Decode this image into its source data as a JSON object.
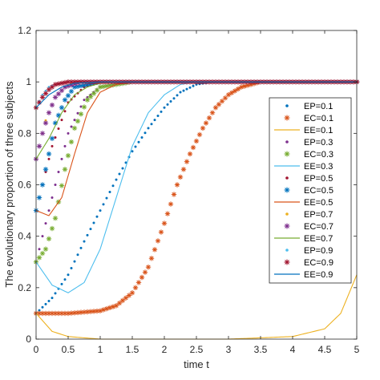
{
  "chart_data": {
    "type": "scatter",
    "xlabel": "time t",
    "ylabel": "The evolutionary proportion of three subjects",
    "xlim": [
      0,
      5
    ],
    "ylim": [
      0,
      1.2
    ],
    "xticks": [
      "0",
      "0.5",
      "1",
      "1.5",
      "2",
      "2.5",
      "3",
      "3.5",
      "4",
      "4.5",
      "5"
    ],
    "yticks": [
      "0",
      "0.2",
      "0.4",
      "0.6",
      "0.8",
      "1",
      "1.2"
    ],
    "grid": false,
    "legend_position": "right-middle",
    "series": [
      {
        "name": "EP=0.1",
        "style": "dot",
        "color": "#0072BD",
        "x": [
          0,
          0.25,
          0.5,
          0.75,
          1,
          1.25,
          1.5,
          1.75,
          2,
          2.25,
          2.5,
          2.75,
          3,
          5
        ],
        "y": [
          0.1,
          0.16,
          0.25,
          0.38,
          0.5,
          0.62,
          0.73,
          0.82,
          0.9,
          0.96,
          0.99,
          1,
          1,
          1
        ]
      },
      {
        "name": "EC=0.1",
        "style": "star",
        "color": "#D95319",
        "x": [
          0,
          0.5,
          1,
          1.25,
          1.5,
          1.75,
          2,
          2.2,
          2.4,
          2.6,
          2.8,
          3,
          3.2,
          3.5,
          4,
          5
        ],
        "y": [
          0.1,
          0.1,
          0.11,
          0.13,
          0.18,
          0.28,
          0.45,
          0.6,
          0.72,
          0.82,
          0.9,
          0.95,
          0.98,
          1,
          1,
          1
        ]
      },
      {
        "name": "EE=0.1",
        "style": "line",
        "color": "#EDB120",
        "x": [
          0,
          0.25,
          0.5,
          1,
          2,
          3,
          4,
          4.5,
          4.75,
          5
        ],
        "y": [
          0.1,
          0.03,
          0.01,
          0,
          0,
          0,
          0.01,
          0.04,
          0.1,
          0.25
        ]
      },
      {
        "name": "EP=0.3",
        "style": "dot",
        "color": "#7E2F8E",
        "x": [
          0,
          0.25,
          0.5,
          0.75,
          1,
          1.5,
          2,
          5
        ],
        "y": [
          0.3,
          0.55,
          0.8,
          0.93,
          0.98,
          1,
          1,
          1
        ]
      },
      {
        "name": "EC=0.3",
        "style": "star",
        "color": "#77AC30",
        "x": [
          0,
          0.15,
          0.3,
          0.45,
          0.6,
          0.8,
          1,
          1.5,
          5
        ],
        "y": [
          0.3,
          0.35,
          0.47,
          0.66,
          0.82,
          0.93,
          0.98,
          1,
          1
        ]
      },
      {
        "name": "EE=0.3",
        "style": "line",
        "color": "#4DBEEE",
        "x": [
          0,
          0.25,
          0.5,
          0.75,
          1,
          1.25,
          1.5,
          1.75,
          2,
          2.25,
          2.5,
          3,
          5
        ],
        "y": [
          0.3,
          0.21,
          0.18,
          0.22,
          0.35,
          0.55,
          0.75,
          0.88,
          0.95,
          0.99,
          1,
          1,
          1
        ]
      },
      {
        "name": "EP=0.5",
        "style": "dot",
        "color": "#A2142F",
        "x": [
          0,
          0.25,
          0.5,
          0.75,
          1,
          1.5,
          5
        ],
        "y": [
          0.5,
          0.75,
          0.92,
          0.98,
          1,
          1,
          1
        ]
      },
      {
        "name": "EC=0.5",
        "style": "star",
        "color": "#0072BD",
        "x": [
          0,
          0.1,
          0.2,
          0.3,
          0.45,
          0.6,
          1,
          5
        ],
        "y": [
          0.5,
          0.6,
          0.72,
          0.84,
          0.93,
          0.98,
          1,
          1
        ]
      },
      {
        "name": "EE=0.5",
        "style": "line",
        "color": "#D95319",
        "x": [
          0,
          0.2,
          0.4,
          0.6,
          0.8,
          1,
          1.25,
          1.5,
          2,
          5
        ],
        "y": [
          0.5,
          0.48,
          0.55,
          0.72,
          0.88,
          0.96,
          0.99,
          1,
          1,
          1
        ]
      },
      {
        "name": "EP=0.7",
        "style": "dot",
        "color": "#EDB120",
        "x": [
          0,
          0.15,
          0.3,
          0.45,
          0.6,
          1,
          5
        ],
        "y": [
          0.7,
          0.85,
          0.94,
          0.98,
          1,
          1,
          1
        ]
      },
      {
        "name": "EC=0.7",
        "style": "star",
        "color": "#7E2F8E",
        "x": [
          0,
          0.1,
          0.2,
          0.3,
          0.45,
          0.7,
          5
        ],
        "y": [
          0.7,
          0.8,
          0.88,
          0.94,
          0.98,
          1,
          1
        ]
      },
      {
        "name": "EE=0.7",
        "style": "line",
        "color": "#77AC30",
        "x": [
          0,
          0.2,
          0.4,
          0.6,
          0.8,
          1,
          1.3,
          5
        ],
        "y": [
          0.7,
          0.78,
          0.88,
          0.95,
          0.98,
          0.995,
          1,
          1
        ]
      },
      {
        "name": "EP=0.9",
        "style": "dot",
        "color": "#4DBEEE",
        "x": [
          0,
          0.1,
          0.2,
          0.3,
          0.5,
          5
        ],
        "y": [
          0.9,
          0.95,
          0.98,
          0.99,
          1,
          1
        ]
      },
      {
        "name": "EC=0.9",
        "style": "star",
        "color": "#A2142F",
        "x": [
          0,
          0.1,
          0.2,
          0.3,
          0.5,
          5
        ],
        "y": [
          0.9,
          0.94,
          0.97,
          0.99,
          1,
          1
        ]
      },
      {
        "name": "EE=0.9",
        "style": "line",
        "color": "#0072BD",
        "x": [
          0,
          0.2,
          0.4,
          0.6,
          1,
          5
        ],
        "y": [
          0.9,
          0.95,
          0.98,
          0.995,
          1,
          1
        ]
      }
    ]
  }
}
